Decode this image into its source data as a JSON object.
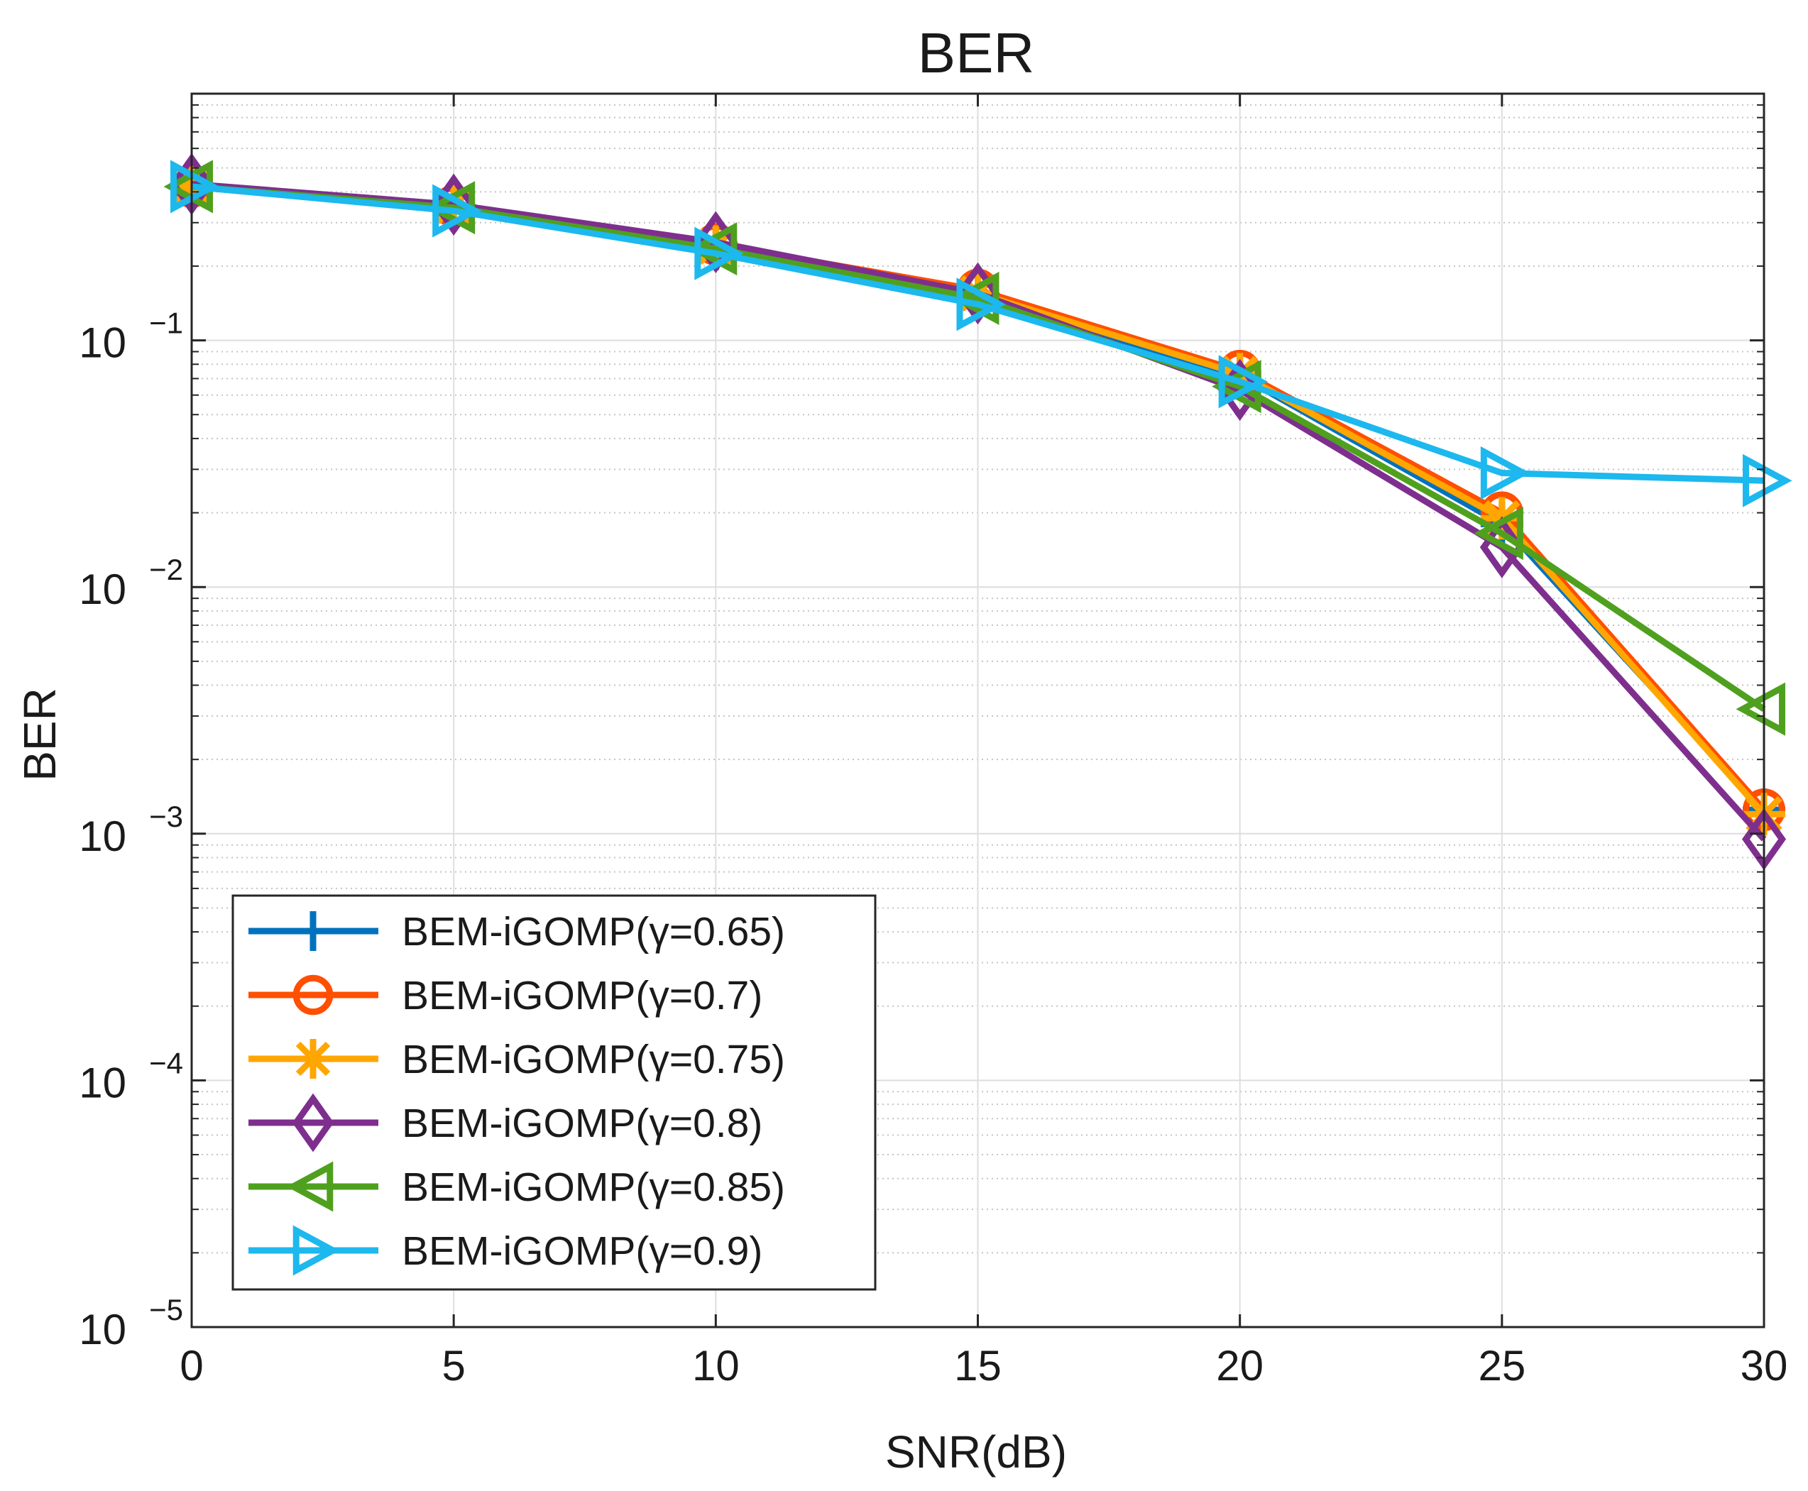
{
  "chart_data": {
    "type": "line",
    "title": "BER",
    "xlabel": "SNR(dB)",
    "ylabel": "BER",
    "yscale": "log",
    "xlim": [
      0,
      30
    ],
    "ylim": [
      1e-05,
      1
    ],
    "grid": true,
    "minor_grid": true,
    "x": [
      0,
      5,
      10,
      15,
      20,
      25,
      30
    ],
    "x_tick_labels": [
      "0",
      "5",
      "10",
      "15",
      "20",
      "25",
      "30"
    ],
    "y_ticks": [
      {
        "base": "10",
        "exp": "−5",
        "value": 1e-05
      },
      {
        "base": "10",
        "exp": "−4",
        "value": 0.0001
      },
      {
        "base": "10",
        "exp": "−3",
        "value": 0.001
      },
      {
        "base": "10",
        "exp": "−2",
        "value": 0.01
      },
      {
        "base": "10",
        "exp": "−1",
        "value": 0.1
      }
    ],
    "legend_position": "bottom-left",
    "series": [
      {
        "name": "BEM-iGOMP(γ=0.65)",
        "color": "#0072BD",
        "marker": "plus",
        "values": [
          0.42,
          0.34,
          0.235,
          0.15,
          0.072,
          0.018,
          0.00125
        ]
      },
      {
        "name": "BEM-iGOMP(γ=0.7)",
        "color": "#FF4F00",
        "marker": "circle",
        "values": [
          0.42,
          0.35,
          0.245,
          0.16,
          0.075,
          0.02,
          0.00125
        ]
      },
      {
        "name": "BEM-iGOMP(γ=0.75)",
        "color": "#FFA600",
        "marker": "asterisk",
        "values": [
          0.42,
          0.35,
          0.24,
          0.155,
          0.073,
          0.019,
          0.0012
        ]
      },
      {
        "name": "BEM-iGOMP(γ=0.8)",
        "color": "#7E2F8E",
        "marker": "diamond",
        "values": [
          0.43,
          0.355,
          0.25,
          0.155,
          0.063,
          0.0145,
          0.00095
        ]
      },
      {
        "name": "BEM-iGOMP(γ=0.85)",
        "color": "#4FA01E",
        "marker": "triangle-left",
        "values": [
          0.42,
          0.345,
          0.235,
          0.148,
          0.065,
          0.0165,
          0.0032
        ]
      },
      {
        "name": "BEM-iGOMP(γ=0.9)",
        "color": "#1CB8EE",
        "marker": "triangle-right",
        "values": [
          0.42,
          0.335,
          0.225,
          0.14,
          0.068,
          0.029,
          0.027
        ]
      }
    ]
  }
}
